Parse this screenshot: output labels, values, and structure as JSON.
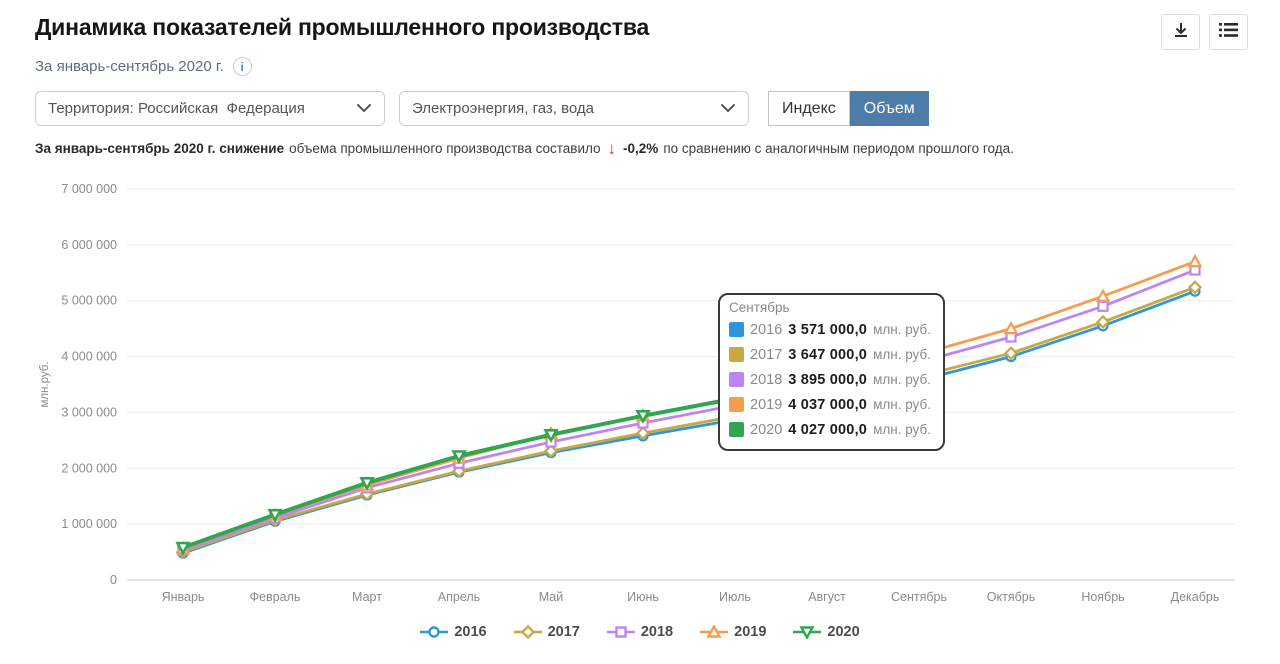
{
  "header": {
    "title": "Динамика показателей промышленного производства",
    "subtitle": "За январь-сентябрь 2020 г.",
    "info_glyph": "i"
  },
  "controls": {
    "territory_select": {
      "value": "Территория: Российская  Федерация"
    },
    "industry_select": {
      "value": "Электроэнергия, газ, вода"
    },
    "toggle": {
      "index_label": "Индекс",
      "volume_label": "Объем",
      "active": "Объем",
      "active_color": "#4e7ca8"
    }
  },
  "status": {
    "bold_prefix": "За январь-сентябрь 2020 г. снижение",
    "middle_text": "объема промышленного производства составило",
    "arrow": "↓",
    "value": "-0,2%",
    "suffix_text": "по сравнению с аналогичным периодом прошлого года.",
    "arrow_color": "#d93b2b"
  },
  "chart_data": {
    "type": "line",
    "title": "",
    "xlabel": "",
    "ylabel": "млн.руб.",
    "ylim": [
      0,
      7000000
    ],
    "ytick_step": 1000000,
    "grid": true,
    "legend_position": "bottom",
    "categories": [
      "Январь",
      "Февраль",
      "Март",
      "Апрель",
      "Май",
      "Июнь",
      "Июль",
      "Август",
      "Сентябрь",
      "Октябрь",
      "Ноябрь",
      "Декабрь"
    ],
    "series": [
      {
        "name": "2016",
        "color": "#2e96db",
        "marker": "circle",
        "values": [
          480000,
          1050000,
          1520000,
          1930000,
          2280000,
          2580000,
          2870000,
          3210000,
          3571000,
          4000000,
          4550000,
          5170000
        ]
      },
      {
        "name": "2017",
        "color": "#c7a842",
        "marker": "diamond",
        "values": [
          500000,
          1070000,
          1540000,
          1950000,
          2310000,
          2630000,
          2930000,
          3280000,
          3647000,
          4060000,
          4620000,
          5240000
        ]
      },
      {
        "name": "2018",
        "color": "#bd85f2",
        "marker": "square",
        "values": [
          530000,
          1110000,
          1650000,
          2090000,
          2470000,
          2810000,
          3130000,
          3500000,
          3895000,
          4350000,
          4900000,
          5550000
        ]
      },
      {
        "name": "2019",
        "color": "#f59c4e",
        "marker": "triangle-up",
        "values": [
          560000,
          1160000,
          1700000,
          2180000,
          2620000,
          2940000,
          3260000,
          3640000,
          4037000,
          4500000,
          5080000,
          5700000
        ]
      },
      {
        "name": "2020",
        "color": "#30a650",
        "marker": "triangle-down",
        "values": [
          580000,
          1170000,
          1740000,
          2220000,
          2600000,
          2940000,
          3250000,
          3630000,
          4027000
        ]
      }
    ]
  },
  "tooltip": {
    "header": "Сентябрь",
    "unit": "млн. руб.",
    "rows": [
      {
        "year": "2016",
        "value": "3 571 000,0",
        "color": "#2e96db"
      },
      {
        "year": "2017",
        "value": "3 647 000,0",
        "color": "#c7a842"
      },
      {
        "year": "2018",
        "value": "3 895 000,0",
        "color": "#bd85f2"
      },
      {
        "year": "2019",
        "value": "4 037 000,0",
        "color": "#f59c4e"
      },
      {
        "year": "2020",
        "value": "4 027 000,0",
        "color": "#30a650"
      }
    ]
  }
}
